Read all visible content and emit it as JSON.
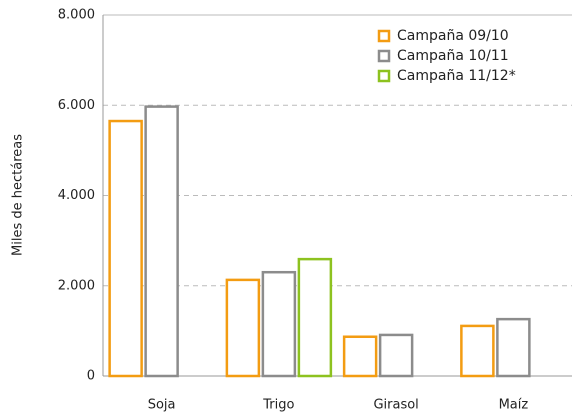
{
  "chart_data": {
    "type": "bar",
    "y_label": "Miles de hectáreas",
    "categories": [
      "Soja",
      "Trigo",
      "Girasol",
      "Maíz"
    ],
    "series": [
      {
        "name": "Campaña 09/10",
        "color": "#f39c12",
        "values": [
          5650,
          2130,
          870,
          1110
        ]
      },
      {
        "name": "Campaña 10/11",
        "color": "#8c8c8c",
        "values": [
          5970,
          2300,
          910,
          1260
        ]
      },
      {
        "name": "Campaña 11/12*",
        "color": "#8dc21f",
        "values": [
          null,
          2590,
          null,
          null
        ]
      }
    ],
    "ylim": [
      0,
      8000
    ],
    "yticks": [
      0,
      {
        "value": 2000,
        "label": "2.000"
      },
      {
        "value": 4000,
        "label": "4.000"
      },
      {
        "value": 6000,
        "label": "6.000"
      },
      {
        "value": 8000,
        "label": "8.000"
      }
    ],
    "grid": true,
    "legend": "top-right"
  }
}
